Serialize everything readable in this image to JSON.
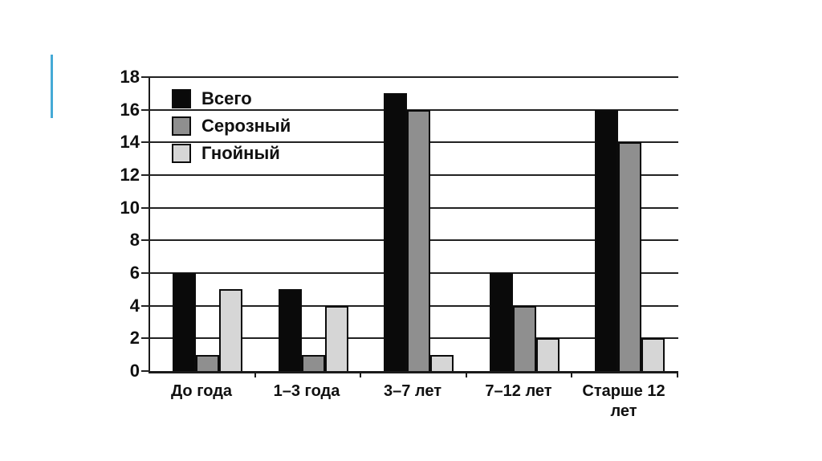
{
  "page": {
    "background": "#ffffff",
    "accent_line_color": "#45aad6"
  },
  "chart_data": {
    "type": "bar",
    "title": "",
    "xlabel": "",
    "ylabel": "",
    "categories": [
      "До года",
      "1–3 года",
      "3–7 лет",
      "7–12 лет",
      "Старше 12 лет"
    ],
    "series": [
      {
        "name": "Всего",
        "color": "#0a0a0a",
        "values": [
          6,
          5,
          17,
          6,
          16
        ]
      },
      {
        "name": "Серозный",
        "color": "#8f8f8f",
        "values": [
          1,
          1,
          16,
          4,
          14
        ]
      },
      {
        "name": "Гнойный",
        "color": "#d6d6d6",
        "values": [
          5,
          4,
          1,
          2,
          2
        ]
      }
    ],
    "ylim": [
      0,
      18
    ],
    "yticks": [
      0,
      2,
      4,
      6,
      8,
      10,
      12,
      14,
      16,
      18
    ],
    "grid": true,
    "grid_color": "#222222",
    "legend_position": "top-left"
  }
}
